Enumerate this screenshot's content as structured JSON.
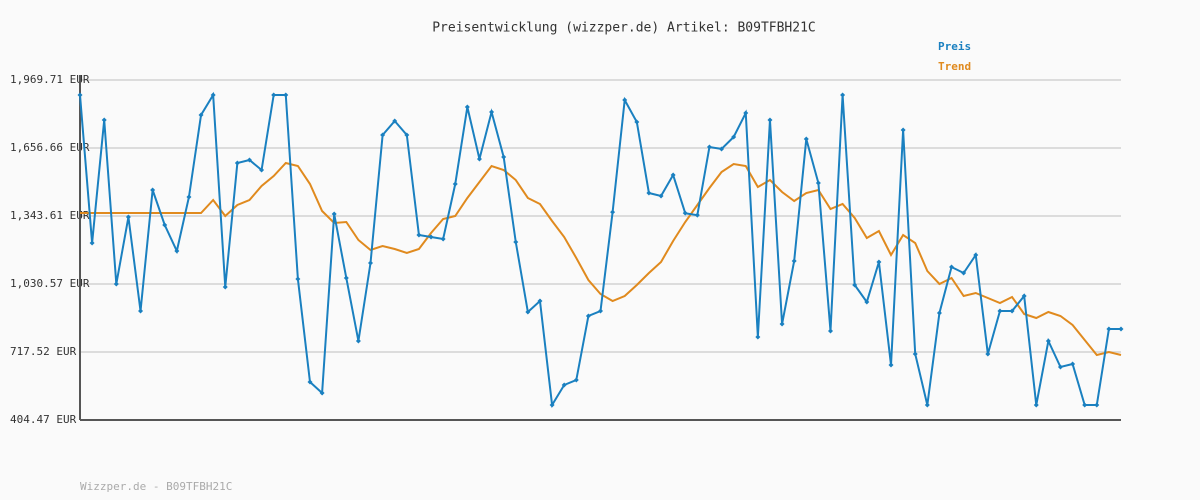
{
  "chart_data": {
    "type": "line",
    "title": "Preisentwicklung (wizzper.de) Artikel: B09TFBH21C",
    "footer": "Wizzper.de - B09TFBH21C",
    "grid": true,
    "legend": "top-right",
    "ylim": [
      404.47,
      1969.71
    ],
    "yticks": [
      {
        "value": 404.47,
        "label": "404.47 EUR"
      },
      {
        "value": 717.52,
        "label": "717.52 EUR"
      },
      {
        "value": 1030.57,
        "label": "1,030.57 EUR"
      },
      {
        "value": 1343.61,
        "label": "1,343.61 EUR"
      },
      {
        "value": 1656.66,
        "label": "1,656.66 EUR"
      },
      {
        "value": 1969.71,
        "label": "1,969.71 EUR"
      }
    ],
    "series": [
      {
        "name": "Preis",
        "color": "#1a80c0",
        "markers": true,
        "values": [
          1900.7,
          1219.3,
          1785.6,
          1030.6,
          1339.0,
          906.3,
          1463.3,
          1302.2,
          1182.5,
          1431.1,
          1808.6,
          1900.7,
          1016.8,
          1587.6,
          1601.4,
          1555.4,
          1900.7,
          1900.7,
          1053.6,
          579.4,
          528.8,
          1352.8,
          1058.2,
          768.2,
          1127.3,
          1716.5,
          1781.0,
          1716.5,
          1256.1,
          1246.9,
          1237.7,
          1490.9,
          1845.4,
          1606.0,
          1822.4,
          1615.2,
          1223.9,
          901.7,
          952.1,
          473.5,
          565.6,
          588.6,
          883.3,
          906.3,
          1361.2,
          1877.6,
          1776.4,
          1449.5,
          1435.7,
          1532.4,
          1356.6,
          1347.4,
          1661.3,
          1652.1,
          1707.3,
          1817.8,
          786.6,
          1785.6,
          846.4,
          1136.5,
          1698.1,
          1495.5,
          814.2,
          1900.7,
          1026.0,
          947.7,
          1131.9,
          657.7,
          1739.5,
          708.3,
          473.5,
          897.1,
          1108.8,
          1081.2,
          1164.1,
          708.3,
          906.3,
          906.3,
          975.3,
          473.5,
          768.2,
          648.5,
          662.3,
          473.5,
          473.5,
          823.4,
          823.4
        ]
      },
      {
        "name": "Trend",
        "color": "#e08a1e",
        "markers": false,
        "values": [
          1357.4,
          1357.4,
          1357.4,
          1357.4,
          1357.4,
          1357.4,
          1357.4,
          1357.4,
          1357.4,
          1357.4,
          1357.4,
          1417.3,
          1343.6,
          1394.3,
          1417.3,
          1481.7,
          1527.7,
          1587.6,
          1573.8,
          1490.9,
          1366.6,
          1311.4,
          1316.0,
          1233.1,
          1187.1,
          1205.5,
          1191.7,
          1173.3,
          1191.7,
          1265.4,
          1329.8,
          1343.6,
          1426.5,
          1500.1,
          1573.8,
          1555.4,
          1509.3,
          1426.5,
          1398.9,
          1320.6,
          1246.9,
          1150.3,
          1049.0,
          984.5,
          952.1,
          975.3,
          1026.0,
          1081.2,
          1131.9,
          1228.5,
          1316.0,
          1394.3,
          1472.5,
          1546.2,
          1583.0,
          1573.8,
          1477.1,
          1509.3,
          1454.1,
          1412.7,
          1449.5,
          1463.3,
          1375.8,
          1398.9,
          1334.4,
          1242.3,
          1274.6,
          1164.1,
          1256.1,
          1219.3,
          1090.4,
          1030.6,
          1058.2,
          975.3,
          989.1,
          966.1,
          943.1,
          970.7,
          892.5,
          874.1,
          901.7,
          883.3,
          841.8,
          772.8,
          703.7,
          717.5,
          703.7
        ]
      }
    ]
  }
}
